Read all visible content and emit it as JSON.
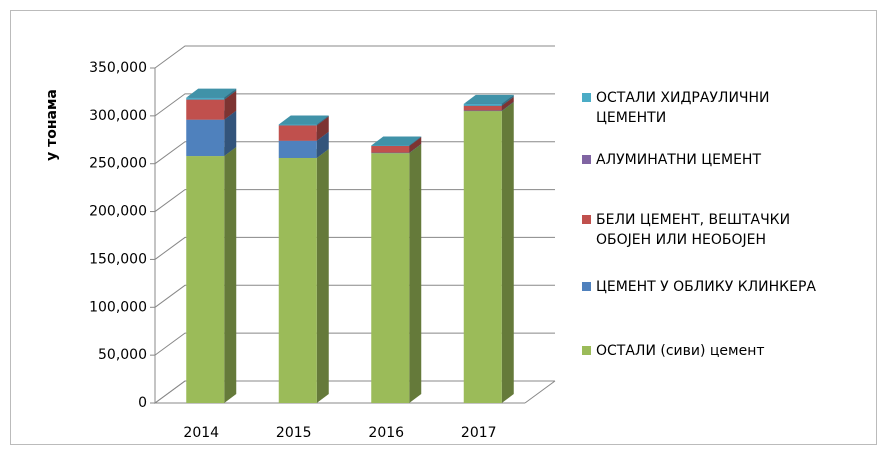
{
  "chart_data": {
    "type": "bar3d_stacked",
    "y_label": "у тонама",
    "categories": [
      "2014",
      "2015",
      "2016",
      "2017"
    ],
    "series": [
      {
        "name": "ОСТАЛИ (сиви) цемент",
        "color": "#9bbb59",
        "values": [
          258000,
          256000,
          261000,
          305000
        ]
      },
      {
        "name": "ЦЕМЕНТ У ОБЛИКУ КЛИНКЕРА",
        "color": "#4f81bd",
        "values": [
          38000,
          18000,
          500,
          500
        ]
      },
      {
        "name": "БЕЛИ ЦЕМЕНТ, ВЕШТАЧКИ\nОБОЈЕН ИЛИ НЕОБОЈЕН",
        "color": "#c0504d",
        "values": [
          21000,
          16000,
          7000,
          5000
        ]
      },
      {
        "name": "АЛУМИНАТНИ ЦЕМЕНТ",
        "color": "#8064a2",
        "values": [
          0,
          0,
          0,
          0
        ]
      },
      {
        "name": "ОСТАЛИ ХИДРАУЛИЧНИ\nЦЕМЕНТИ",
        "color": "#4bacc6",
        "values": [
          2000,
          1000,
          500,
          2000
        ]
      }
    ],
    "ylim": [
      0,
      350000
    ],
    "yticks": [
      0,
      {
        "value": 50000,
        "label": "50,000"
      },
      {
        "value": 100000,
        "label": "100,000"
      },
      {
        "value": 150000,
        "label": "150,000"
      },
      {
        "value": 200000,
        "label": "200,000"
      },
      {
        "value": 250000,
        "label": "250,000"
      },
      {
        "value": 300000,
        "label": "300,000"
      },
      {
        "value": 350000,
        "label": "350,000"
      }
    ],
    "grid": true
  }
}
